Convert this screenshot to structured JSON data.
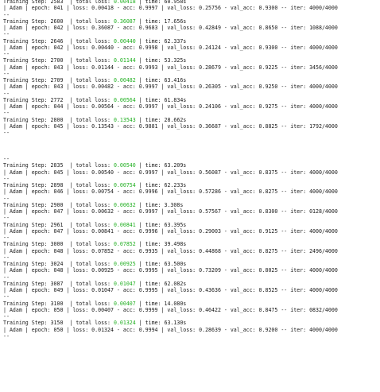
{
  "log": {
    "entries": [
      {
        "step": "Training Step: 2583  ",
        "total_loss": "0.00418",
        "time": "60.958s",
        "detail": "| Adam | epoch: 041 | loss: 0.00418 - acc: 0.9997 | val_loss: 0.25756 - val_acc: 0.9300 -- iter: 4000/4000"
      },
      {
        "step": "Training Step: 2600  ",
        "total_loss": "0.36087",
        "time": "17.656s",
        "detail": "| Adam | epoch: 042 | loss: 0.36087 - acc: 0.9683 | val_loss: 0.42849 - val_acc: 0.8650 -- iter: 1088/4000"
      },
      {
        "step": "Training Step: 2646  ",
        "total_loss": "0.00440",
        "time": "62.337s",
        "detail": "| Adam | epoch: 042 | loss: 0.00440 - acc: 0.9998 | val_loss: 0.24124 - val_acc: 0.9300 -- iter: 4000/4000"
      },
      {
        "step": "Training Step: 2700  ",
        "total_loss": "0.01144",
        "time": "53.325s",
        "detail": "| Adam | epoch: 043 | loss: 0.01144 - acc: 0.9993 | val_loss: 0.28679 - val_acc: 0.9225 -- iter: 3456/4000"
      },
      {
        "step": "Training Step: 2709  ",
        "total_loss": "0.00482",
        "time": "63.416s",
        "detail": "| Adam | epoch: 043 | loss: 0.00482 - acc: 0.9997 | val_loss: 0.26305 - val_acc: 0.9250 -- iter: 4000/4000"
      },
      {
        "step": "Training Step: 2772  ",
        "total_loss": "0.00564",
        "time": "61.834s",
        "detail": "| Adam | epoch: 044 | loss: 0.00564 - acc: 0.9997 | val_loss: 0.24106 - val_acc: 0.9275 -- iter: 4000/4000"
      },
      {
        "step": "Training Step: 2800  ",
        "total_loss": "0.13543",
        "time": "28.662s",
        "detail": "| Adam | epoch: 045 | loss: 0.13543 - acc: 0.9881 | val_loss: 0.36687 - val_acc: 0.8825 -- iter: 1792/4000"
      },
      {
        "step": "Training Step: 2835  ",
        "total_loss": "0.00540",
        "time": "63.209s",
        "detail": "| Adam | epoch: 045 | loss: 0.00540 - acc: 0.9997 | val_loss: 0.56087 - val_acc: 0.8375 -- iter: 4000/4000"
      },
      {
        "step": "Training Step: 2898  ",
        "total_loss": "0.00754",
        "time": "62.233s",
        "detail": "| Adam | epoch: 046 | loss: 0.00754 - acc: 0.9996 | val_loss: 0.57286 - val_acc: 0.8275 -- iter: 4000/4000"
      },
      {
        "step": "Training Step: 2900  ",
        "total_loss": "0.00632",
        "time": "3.308s",
        "detail": "| Adam | epoch: 047 | loss: 0.00632 - acc: 0.9997 | val_loss: 0.57567 - val_acc: 0.8300 -- iter: 0128/4000"
      },
      {
        "step": "Training Step: 2961  ",
        "total_loss": "0.00841",
        "time": "63.395s",
        "detail": "| Adam | epoch: 047 | loss: 0.00841 - acc: 0.9996 | val_loss: 0.29003 - val_acc: 0.9125 -- iter: 4000/4000"
      },
      {
        "step": "Training Step: 3000  ",
        "total_loss": "0.07852",
        "time": "39.498s",
        "detail": "| Adam | epoch: 048 | loss: 0.07852 - acc: 0.9935 | val_loss: 0.44868 - val_acc: 0.8275 -- iter: 2496/4000"
      },
      {
        "step": "Training Step: 3024  ",
        "total_loss": "0.00925",
        "time": "63.500s",
        "detail": "| Adam | epoch: 048 | loss: 0.00925 - acc: 0.9995 | val_loss: 0.73209 - val_acc: 0.8025 -- iter: 4000/4000"
      },
      {
        "step": "Training Step: 3087  ",
        "total_loss": "0.01047",
        "time": "62.082s",
        "detail": "| Adam | epoch: 049 | loss: 0.01047 - acc: 0.9995 | val_loss: 0.43636 - val_acc: 0.8525 -- iter: 4000/4000"
      },
      {
        "step": "Training Step: 3100  ",
        "total_loss": "0.00407",
        "time": "14.080s",
        "detail": "| Adam | epoch: 050 | loss: 0.00407 - acc: 0.9999 | val_loss: 0.46422 - val_acc: 0.8475 -- iter: 0832/4000"
      },
      {
        "step": "Training Step: 3150  ",
        "total_loss": "0.01324",
        "time": "63.130s",
        "detail": "| Adam | epoch: 050 | loss: 0.01324 - acc: 0.9994 | val_loss: 0.28639 - val_acc: 0.9200 -- iter: 4000/4000"
      }
    ],
    "separator": "--",
    "total_loss_label": "| total loss: ",
    "time_label": " | time: ",
    "colors": {
      "text": "#1a1a1a",
      "loss_value": "#22b022",
      "background": "#ffffff"
    }
  }
}
